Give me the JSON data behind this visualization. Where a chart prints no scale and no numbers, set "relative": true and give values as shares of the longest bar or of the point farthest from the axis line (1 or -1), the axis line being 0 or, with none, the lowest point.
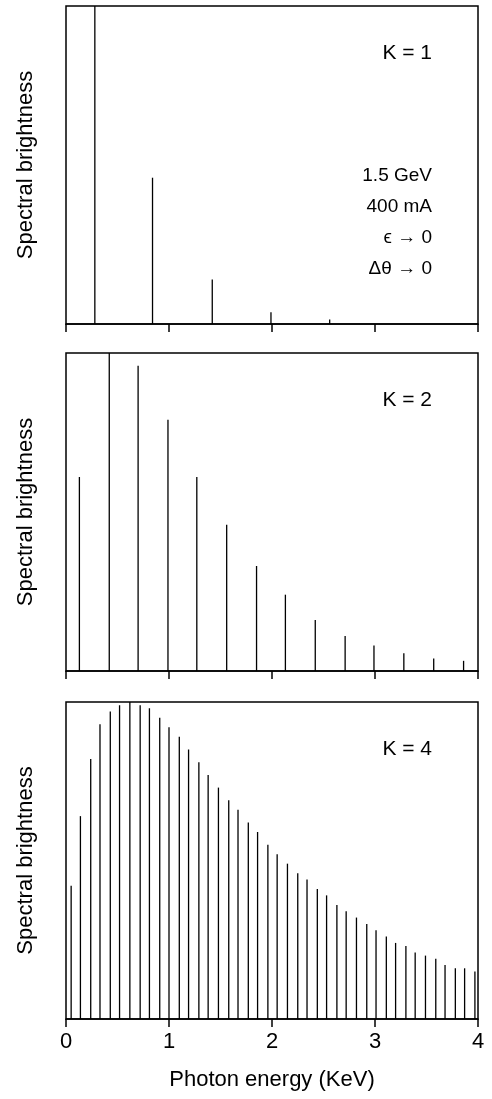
{
  "chart_data": [
    {
      "type": "bar",
      "relative": true,
      "ylabel": "Spectral brightness",
      "annotations": [
        "K = 1",
        "1.5 GeV",
        "400 mA",
        "ϵ → 0",
        "Δθ → 0"
      ],
      "x": [
        0.28,
        0.84,
        1.42,
        1.99,
        2.56
      ],
      "values": [
        1.0,
        0.46,
        0.14,
        0.037,
        0.014
      ],
      "color": "#000000",
      "xlim": [
        0,
        4
      ],
      "xticks": [
        0,
        1,
        2,
        3,
        4
      ],
      "tick_labels": false
    },
    {
      "type": "bar",
      "relative": true,
      "ylabel": "Spectral brightness",
      "annotations": [
        "K = 2"
      ],
      "x": [
        0.13,
        0.42,
        0.7,
        0.99,
        1.27,
        1.56,
        1.85,
        2.13,
        2.42,
        2.71,
        2.99,
        3.28,
        3.57,
        3.86
      ],
      "values": [
        0.61,
        1.0,
        0.96,
        0.79,
        0.61,
        0.46,
        0.33,
        0.24,
        0.16,
        0.11,
        0.08,
        0.056,
        0.039,
        0.032
      ],
      "color": "#000000",
      "xlim": [
        0,
        4
      ],
      "xticks": [
        0,
        1,
        2,
        3,
        4
      ],
      "tick_labels": false
    },
    {
      "type": "bar",
      "relative": true,
      "ylabel": "Spectral brightness",
      "xlabel": "Photon energy (KeV)",
      "annotations": [
        "K = 4"
      ],
      "x": [
        0.05,
        0.14,
        0.24,
        0.33,
        0.43,
        0.52,
        0.62,
        0.72,
        0.81,
        0.91,
        1.0,
        1.1,
        1.19,
        1.29,
        1.38,
        1.48,
        1.58,
        1.67,
        1.77,
        1.86,
        1.96,
        2.05,
        2.15,
        2.25,
        2.34,
        2.44,
        2.53,
        2.63,
        2.72,
        2.82,
        2.92,
        3.01,
        3.11,
        3.2,
        3.3,
        3.39,
        3.49,
        3.59,
        3.68,
        3.78,
        3.87,
        3.97
      ],
      "values": [
        0.42,
        0.64,
        0.82,
        0.93,
        0.97,
        0.99,
        1.0,
        0.99,
        0.98,
        0.95,
        0.92,
        0.89,
        0.85,
        0.81,
        0.77,
        0.73,
        0.69,
        0.66,
        0.62,
        0.59,
        0.55,
        0.52,
        0.49,
        0.46,
        0.44,
        0.41,
        0.39,
        0.36,
        0.34,
        0.32,
        0.3,
        0.28,
        0.26,
        0.24,
        0.23,
        0.21,
        0.2,
        0.19,
        0.17,
        0.16,
        0.16,
        0.15
      ],
      "color": "#000000",
      "xlim": [
        0,
        4
      ],
      "xticks": [
        0,
        1,
        2,
        3,
        4
      ],
      "tick_labels": "x"
    }
  ]
}
